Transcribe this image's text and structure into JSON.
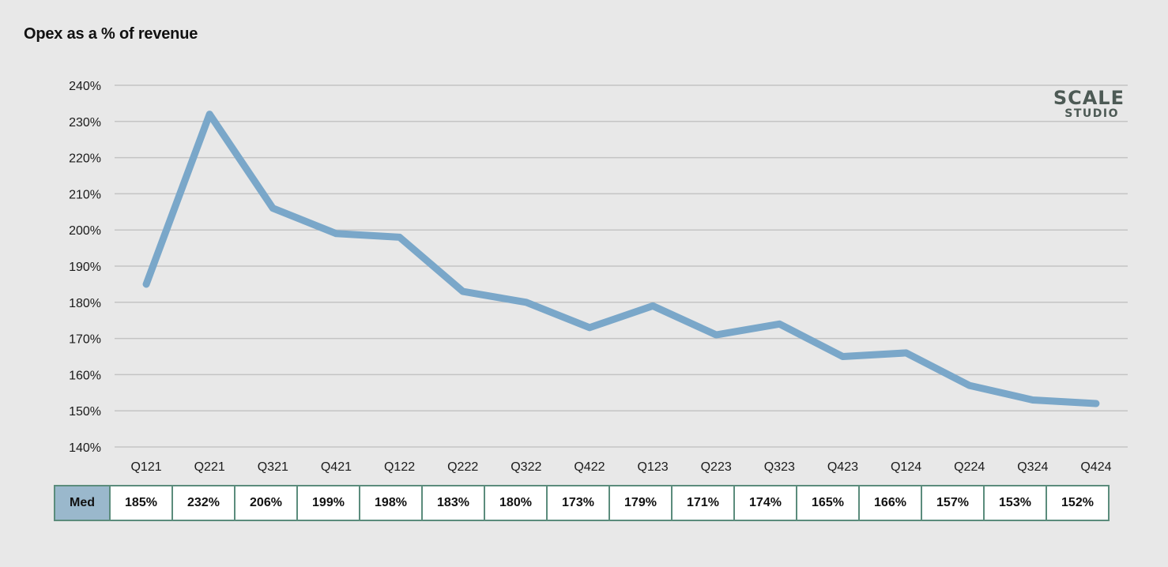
{
  "chart_data": {
    "type": "line",
    "title": "Opex as a % of revenue",
    "categories": [
      "Q121",
      "Q221",
      "Q321",
      "Q421",
      "Q122",
      "Q222",
      "Q322",
      "Q422",
      "Q123",
      "Q223",
      "Q323",
      "Q423",
      "Q124",
      "Q224",
      "Q324",
      "Q424"
    ],
    "series": [
      {
        "name": "Med",
        "values": [
          185,
          232,
          206,
          199,
          198,
          183,
          180,
          173,
          179,
          171,
          174,
          165,
          166,
          157,
          153,
          152
        ],
        "color": "#7aa7c9"
      }
    ],
    "table_labels": [
      "185%",
      "232%",
      "206%",
      "199%",
      "198%",
      "183%",
      "180%",
      "173%",
      "179%",
      "171%",
      "174%",
      "165%",
      "166%",
      "157%",
      "153%",
      "152%"
    ],
    "ylim": [
      140,
      240
    ],
    "yticks": [
      140,
      150,
      160,
      170,
      180,
      190,
      200,
      210,
      220,
      230,
      240
    ],
    "ytick_labels": [
      "140%",
      "150%",
      "160%",
      "170%",
      "180%",
      "190%",
      "200%",
      "210%",
      "220%",
      "230%",
      "240%"
    ],
    "grid": true,
    "xlabel": "",
    "ylabel": ""
  },
  "logo": {
    "main": "SCALE",
    "sub": "STUDIO"
  },
  "colors": {
    "background": "#e8e8e8",
    "line": "#7aa7c9",
    "grid": "#c4c4c4",
    "table_border": "#5b8c7c",
    "row_header": "#9ab8cc"
  }
}
